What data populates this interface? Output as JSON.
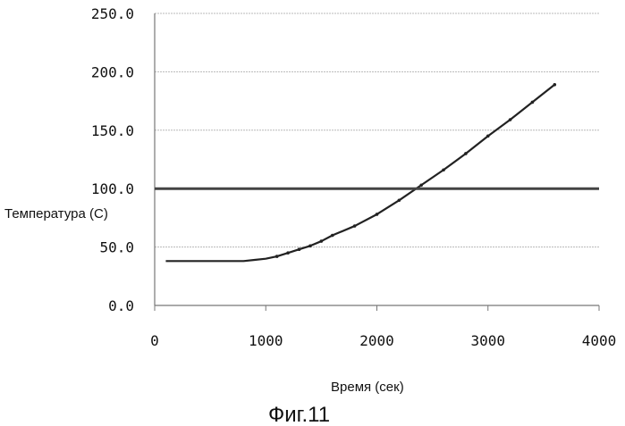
{
  "chart_data": {
    "type": "line",
    "title": "",
    "xlabel": "Время (сек)",
    "ylabel": "Температура (С)",
    "caption": "Фиг.11",
    "xlim": [
      0,
      4000
    ],
    "ylim": [
      0,
      250
    ],
    "x_ticks": [
      "0",
      "1000",
      "2000",
      "3000",
      "4000"
    ],
    "y_ticks": [
      "0.0",
      "50.0",
      "100.0",
      "150.0",
      "200.0",
      "250.0"
    ],
    "grid": true,
    "legend": "none",
    "series": [
      {
        "x": [
          100,
          200,
          400,
          600,
          800,
          900,
          1000,
          1100,
          1200,
          1300,
          1400,
          1500,
          1600,
          1800,
          2000,
          2200,
          2400,
          2600,
          2800,
          3000,
          3200,
          3400,
          3600
        ],
        "y": [
          38,
          38,
          38,
          38,
          38,
          39,
          40,
          42,
          45,
          48,
          51,
          55,
          60,
          68,
          78,
          90,
          103,
          116,
          130,
          145,
          159,
          174,
          189
        ],
        "color": "#222222"
      },
      {
        "x": [
          0,
          4000
        ],
        "y": [
          100,
          100
        ],
        "color": "#444444"
      }
    ]
  }
}
